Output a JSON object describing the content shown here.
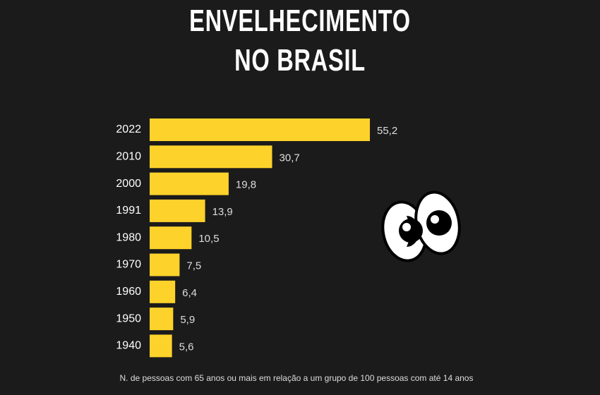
{
  "chart_data": {
    "type": "hbar",
    "title": "ENVELHECIMENTO NO BRASIL",
    "categories": [
      "2022",
      "2010",
      "2000",
      "1991",
      "1980",
      "1970",
      "1960",
      "1950",
      "1940"
    ],
    "values": [
      55.2,
      30.7,
      19.8,
      13.9,
      10.5,
      7.5,
      6.4,
      5.9,
      5.6
    ],
    "value_labels": [
      "55,2",
      "30,7",
      "19,8",
      "13,9",
      "10,5",
      "7,5",
      "6,4",
      "5,9",
      "5,6"
    ],
    "color": "#fdd22b",
    "caption": "N. de pessoas com 65 anos ou mais em relação a um grupo de 100 pessoas com até 14 anos"
  }
}
